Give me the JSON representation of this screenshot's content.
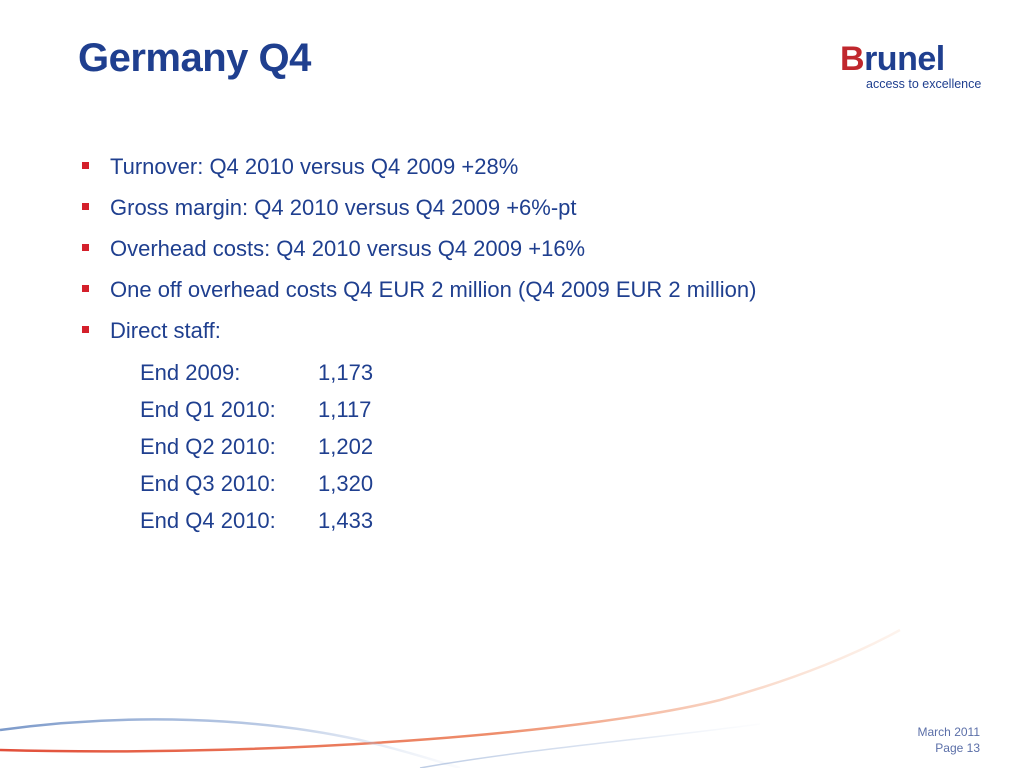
{
  "slide": {
    "title": "Germany Q4"
  },
  "logo": {
    "wordmark": "Brunel",
    "tagline": "access to excellence",
    "colors": {
      "brand_red": "#c0272d",
      "brand_blue": "#1f3f8f"
    }
  },
  "bullets": [
    {
      "text": "Turnover: Q4 2010 versus Q4 2009 +28%"
    },
    {
      "text": "Gross margin: Q4 2010 versus Q4 2009 +6%-pt"
    },
    {
      "text": "Overhead costs: Q4 2010 versus Q4 2009 +16%"
    },
    {
      "text": "One off overhead costs Q4 EUR 2 million (Q4 2009 EUR 2 million)"
    },
    {
      "text": "Direct staff:"
    }
  ],
  "direct_staff": [
    {
      "label": "End 2009:",
      "value": "1,173"
    },
    {
      "label": "End Q1 2010:",
      "value": "1,117"
    },
    {
      "label": "End Q2 2010:",
      "value": "1,202"
    },
    {
      "label": "End Q3 2010:",
      "value": "1,320"
    },
    {
      "label": "End Q4 2010:",
      "value": "1,433"
    }
  ],
  "footer": {
    "date": "March 2011",
    "page": "Page 13"
  },
  "colors": {
    "text": "#1f3f8f",
    "bullet": "#d4202b",
    "decor_red": "#e0452f",
    "decor_blue": "#6e8fc4"
  }
}
